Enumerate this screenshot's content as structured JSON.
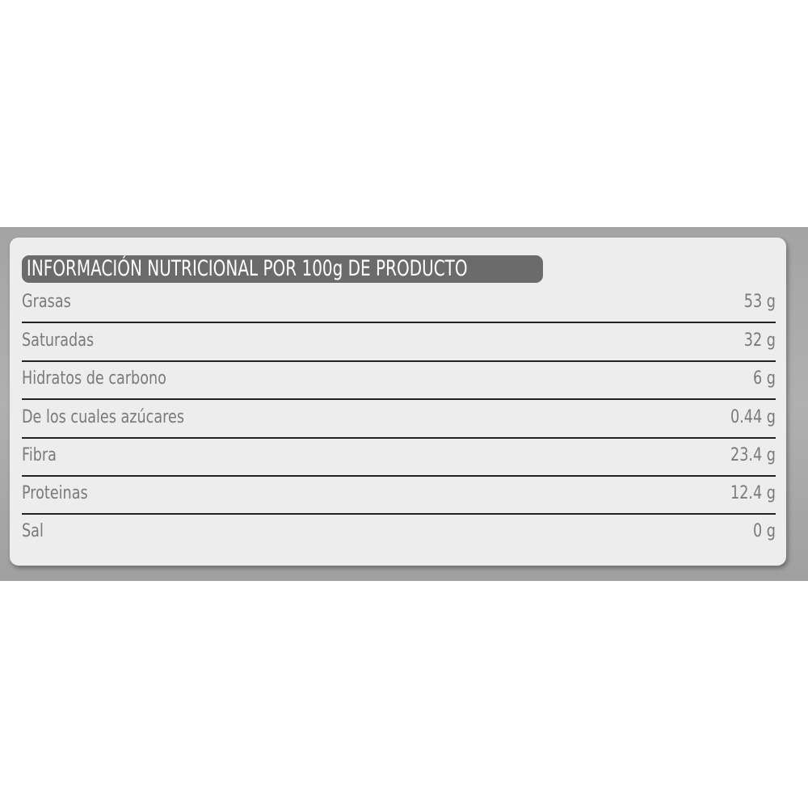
{
  "title": "INFORMACIÓN NUTRICIONAL POR 100g DE PRODUCTO",
  "rows": [
    {
      "label": "Grasas",
      "value": "53 g"
    },
    {
      "label": "Saturadas",
      "value": "32 g"
    },
    {
      "label": "Hidratos de carbono",
      "value": "6 g"
    },
    {
      "label": "De los cuales azúcares",
      "value": "0.44 g"
    },
    {
      "label": "Fibra",
      "value": "23.4 g"
    },
    {
      "label": "Proteinas",
      "value": "12.4 g"
    },
    {
      "label": "Sal",
      "value": "0 g"
    }
  ]
}
